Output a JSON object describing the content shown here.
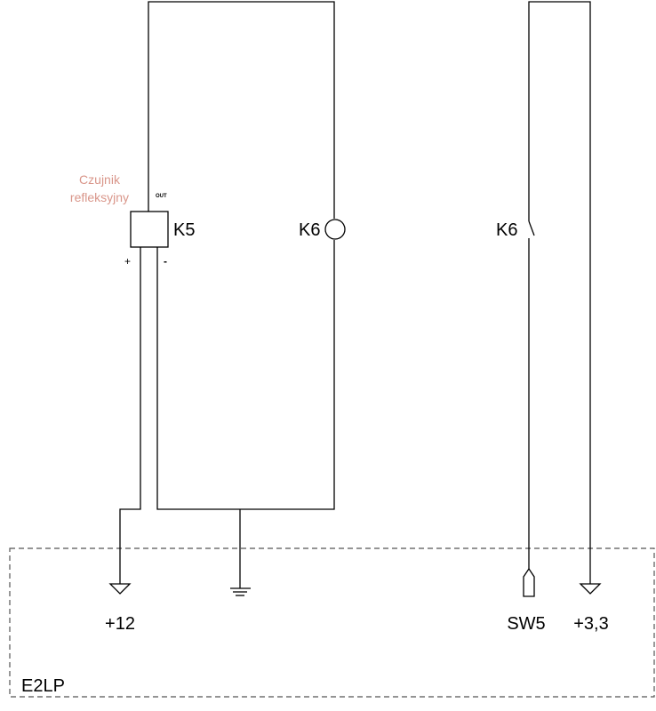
{
  "sensor": {
    "name_line1": "Czujnik",
    "name_line2": "refleksyjny",
    "name_color": "#d9968a",
    "ref": "K5",
    "out_label": "OUT",
    "plus_label": "+",
    "minus_label": "-"
  },
  "relay": {
    "coil_ref": "K6",
    "contact_ref": "K6"
  },
  "board": {
    "name": "E2LP",
    "terminals": {
      "plus12": "+12",
      "sw5": "SW5",
      "plus33": "+3,3"
    }
  },
  "colors": {
    "wire": "#000000",
    "board_border": "#555555"
  }
}
